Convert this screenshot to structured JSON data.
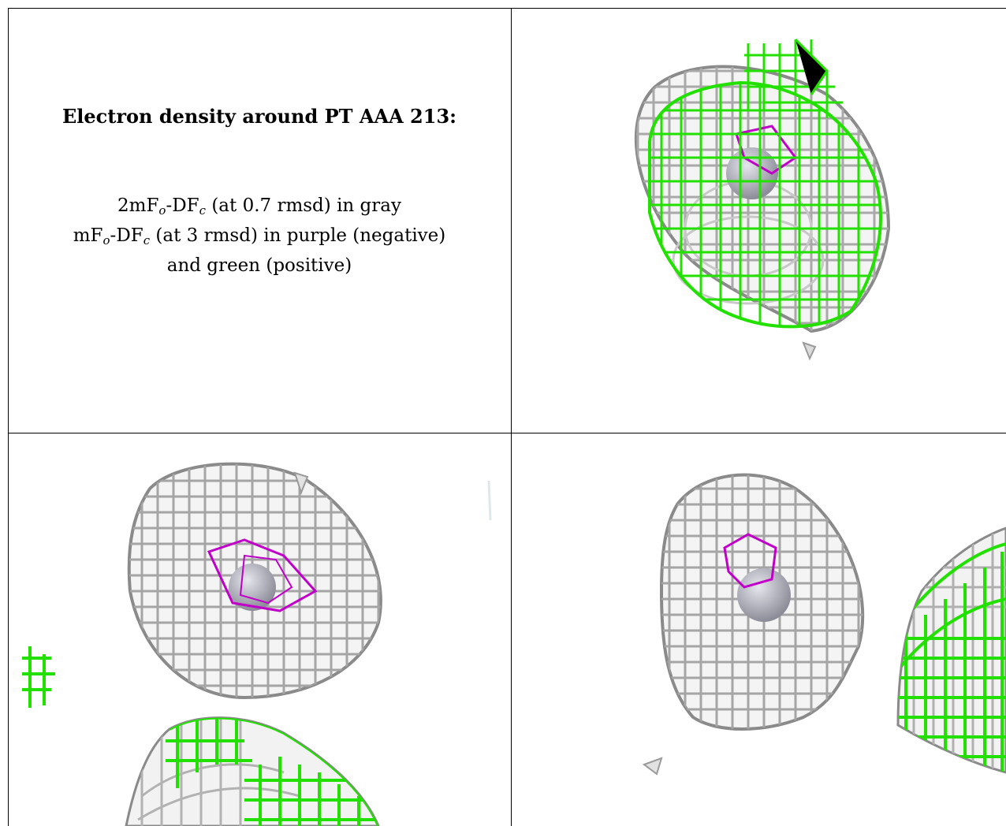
{
  "header": {
    "title": "Electron density around PT AAA 213:"
  },
  "legend": {
    "line1": {
      "pre": "2mF",
      "s1": "o",
      "mid": "-DF",
      "s2": "c",
      "post": " (at 0.7 rmsd) in gray"
    },
    "line2": {
      "pre": "mF",
      "s1": "o",
      "mid": "-DF",
      "s2": "c",
      "post": " (at 3 rmsd) in purple (negative)"
    },
    "line3": "and green (positive)"
  },
  "colors": {
    "map_2fofc": "#9a9a9a",
    "map_fofc_negative": "#c000c8",
    "map_fofc_positive": "#22e000",
    "atom": "#a8a8b4",
    "border": "#000000"
  },
  "panels": [
    {
      "name": "view-1",
      "maps": [
        "2mFo-DFc",
        "mFo-DFc positive",
        "mFo-DFc negative"
      ]
    },
    {
      "name": "view-2",
      "maps": [
        "2mFo-DFc",
        "mFo-DFc positive",
        "mFo-DFc negative"
      ]
    },
    {
      "name": "view-3",
      "maps": [
        "2mFo-DFc",
        "mFo-DFc positive",
        "mFo-DFc negative"
      ]
    }
  ]
}
